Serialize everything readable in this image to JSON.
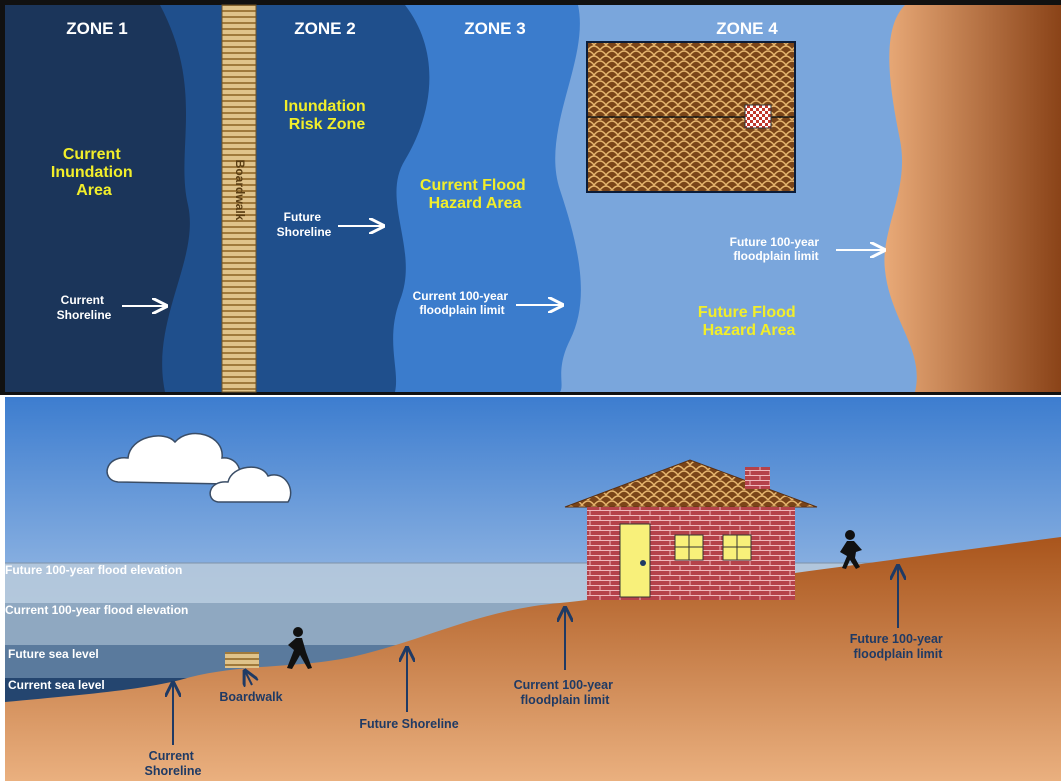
{
  "top_view": {
    "zones": [
      "ZONE 1",
      "ZONE 2",
      "ZONE 3",
      "ZONE 4"
    ],
    "areas": {
      "current_inundation": [
        "Current",
        "Inundation",
        "Area"
      ],
      "inundation_risk": [
        "Inundation",
        "Risk Zone"
      ],
      "current_flood_hazard": [
        "Current Flood",
        "Hazard Area"
      ],
      "future_flood_hazard": [
        "Future Flood",
        "Hazard Area"
      ]
    },
    "boardwalk": "Boardwalk",
    "markers": {
      "current_shoreline": [
        "Current",
        "Shoreline"
      ],
      "future_shoreline": [
        "Future",
        "Shoreline"
      ],
      "current_floodplain": [
        "Current 100-year",
        "floodplain limit"
      ],
      "future_floodplain": [
        "Future 100-year",
        "floodplain limit"
      ]
    }
  },
  "cross_section": {
    "levels": [
      "Future 100-year flood elevation",
      "Current 100-year flood elevation",
      "Future sea level",
      "Current sea level"
    ],
    "markers": {
      "current_shoreline": [
        "Current",
        "Shoreline"
      ],
      "boardwalk": "Boardwalk",
      "future_shoreline": "Future Shoreline",
      "current_floodplain": [
        "Current 100-year",
        "floodplain limit"
      ],
      "future_floodplain": [
        "Future 100-year",
        "floodplain limit"
      ]
    }
  }
}
